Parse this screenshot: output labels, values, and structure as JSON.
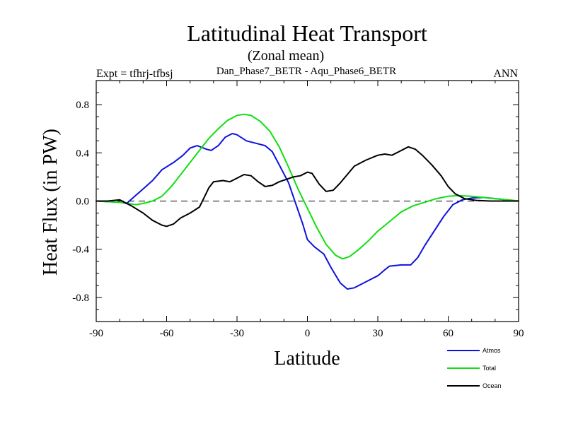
{
  "chart_data": {
    "type": "line",
    "title": "Latitudinal Heat Transport",
    "subtitle": "(Zonal mean)",
    "left_label": "Expt = tfhrj-tfbsj",
    "center_label": "Dan_Phase7_BETR - Aqu_Phase6_BETR",
    "right_label": "ANN",
    "xlabel": "Latitude",
    "ylabel": "Heat Flux (in PW)",
    "xlim": [
      -90,
      90
    ],
    "ylim": [
      -1.0,
      1.0
    ],
    "xticks": [
      -90,
      -60,
      -30,
      0,
      30,
      60,
      90
    ],
    "xtick_labels": [
      "-90",
      "-60",
      "-30",
      "0",
      "30",
      "60",
      "90"
    ],
    "yticks": [
      -0.8,
      -0.4,
      0.0,
      0.4,
      0.8
    ],
    "ytick_labels": [
      "-0.8",
      "-0.4",
      "0.0",
      "0.4",
      "0.8"
    ],
    "zero_line": "dashed",
    "legend_position": "bottom-right",
    "series": [
      {
        "name": "Atmos",
        "color": "#1010e0",
        "x": [
          -90,
          -80,
          -77,
          -73,
          -70,
          -66,
          -62,
          -57,
          -53,
          -50,
          -47,
          -43,
          -41,
          -38,
          -35,
          -32,
          -30,
          -26,
          -22,
          -18,
          -15,
          -12,
          -8,
          -5,
          -2,
          0,
          3,
          7,
          10,
          14,
          17,
          20,
          23,
          26,
          30,
          33,
          35,
          40,
          44,
          47,
          50,
          54,
          58,
          62,
          66,
          70,
          75,
          80,
          85,
          90
        ],
        "y": [
          0,
          -0.01,
          -0.02,
          0.05,
          0.1,
          0.17,
          0.26,
          0.32,
          0.38,
          0.44,
          0.46,
          0.43,
          0.42,
          0.46,
          0.53,
          0.56,
          0.55,
          0.5,
          0.48,
          0.46,
          0.41,
          0.3,
          0.15,
          -0.02,
          -0.19,
          -0.32,
          -0.38,
          -0.44,
          -0.55,
          -0.68,
          -0.73,
          -0.72,
          -0.69,
          -0.66,
          -0.62,
          -0.57,
          -0.54,
          -0.53,
          -0.53,
          -0.47,
          -0.37,
          -0.25,
          -0.13,
          -0.03,
          0.01,
          0.025,
          0.03,
          0.02,
          0.01,
          0
        ]
      },
      {
        "name": "Total",
        "color": "#10e010",
        "x": [
          -90,
          -80,
          -77,
          -73,
          -70,
          -66,
          -62,
          -58,
          -54,
          -50,
          -46,
          -42,
          -38,
          -34,
          -30,
          -27,
          -24,
          -20,
          -16,
          -12,
          -8,
          -4,
          0,
          4,
          8,
          12,
          15,
          18,
          22,
          26,
          30,
          35,
          40,
          45,
          50,
          55,
          60,
          64,
          70,
          75,
          80,
          85,
          90
        ],
        "y": [
          0,
          -0.01,
          -0.02,
          -0.03,
          -0.02,
          0.0,
          0.04,
          0.12,
          0.22,
          0.32,
          0.42,
          0.52,
          0.6,
          0.67,
          0.71,
          0.72,
          0.71,
          0.66,
          0.58,
          0.45,
          0.28,
          0.1,
          -0.06,
          -0.22,
          -0.36,
          -0.45,
          -0.48,
          -0.46,
          -0.4,
          -0.33,
          -0.25,
          -0.17,
          -0.09,
          -0.04,
          -0.01,
          0.02,
          0.04,
          0.045,
          0.04,
          0.03,
          0.02,
          0.01,
          0
        ]
      },
      {
        "name": "Ocean",
        "color": "#000000",
        "x": [
          -90,
          -85,
          -80,
          -75,
          -70,
          -66,
          -62,
          -60,
          -57,
          -54,
          -50,
          -46,
          -44,
          -42,
          -40,
          -36,
          -33,
          -30,
          -27,
          -24,
          -21,
          -18,
          -15,
          -12,
          -9,
          -6,
          -3,
          0,
          2,
          5,
          8,
          11,
          14,
          17,
          20,
          25,
          30,
          33,
          36,
          39,
          43,
          46,
          49,
          53,
          57,
          60,
          63,
          67,
          72,
          78,
          84,
          90
        ],
        "y": [
          0,
          0.0,
          0.01,
          -0.04,
          -0.1,
          -0.16,
          -0.2,
          -0.21,
          -0.19,
          -0.14,
          -0.1,
          -0.05,
          0.03,
          0.11,
          0.16,
          0.17,
          0.16,
          0.19,
          0.22,
          0.21,
          0.16,
          0.12,
          0.13,
          0.16,
          0.18,
          0.2,
          0.21,
          0.24,
          0.23,
          0.14,
          0.08,
          0.09,
          0.15,
          0.22,
          0.29,
          0.34,
          0.38,
          0.39,
          0.38,
          0.41,
          0.45,
          0.43,
          0.38,
          0.3,
          0.21,
          0.12,
          0.06,
          0.02,
          0.005,
          0.0,
          0.0,
          0
        ]
      }
    ]
  }
}
